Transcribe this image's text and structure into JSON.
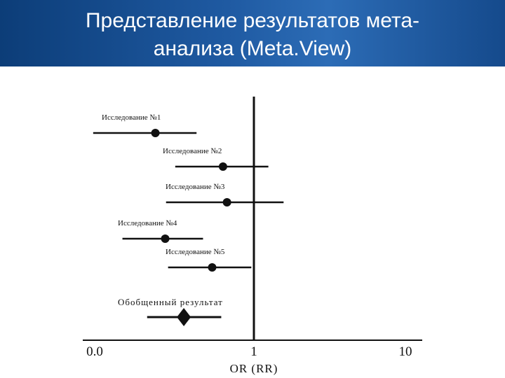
{
  "slide": {
    "title_line1": "Представление результатов мета-",
    "title_line2": "анализа (Meta.View)"
  },
  "chart_data": {
    "type": "scatter",
    "subtype": "forest-plot",
    "title": "",
    "xlabel": "OR (RR)",
    "ylabel": "",
    "x_scale": "log",
    "x_ticks": [
      {
        "label": "0.0",
        "value": 0.01
      },
      {
        "label": "1",
        "value": 1
      },
      {
        "label": "10",
        "value": 10
      }
    ],
    "xlim": [
      0.01,
      10
    ],
    "reference_line": 1,
    "grid": false,
    "legend": "none",
    "studies": [
      {
        "name": "Исследование №1",
        "estimate": 0.063,
        "ci_low": 0.011,
        "ci_high": 0.2
      },
      {
        "name": "Исследование №2",
        "estimate": 0.42,
        "ci_low": 0.11,
        "ci_high": 1.5
      },
      {
        "name": "Исследование №3",
        "estimate": 0.47,
        "ci_low": 0.085,
        "ci_high": 2.3
      },
      {
        "name": "Исследование №4",
        "estimate": 0.083,
        "ci_low": 0.025,
        "ci_high": 0.24
      },
      {
        "name": "Исследование №5",
        "estimate": 0.31,
        "ci_low": 0.09,
        "ci_high": 0.93
      }
    ],
    "overall": {
      "name": "Обобщенный результат",
      "estimate": 0.14,
      "ci_low": 0.05,
      "ci_high": 0.4
    },
    "colors": {
      "marks": "#111111",
      "header": "#1f5aa2"
    }
  }
}
